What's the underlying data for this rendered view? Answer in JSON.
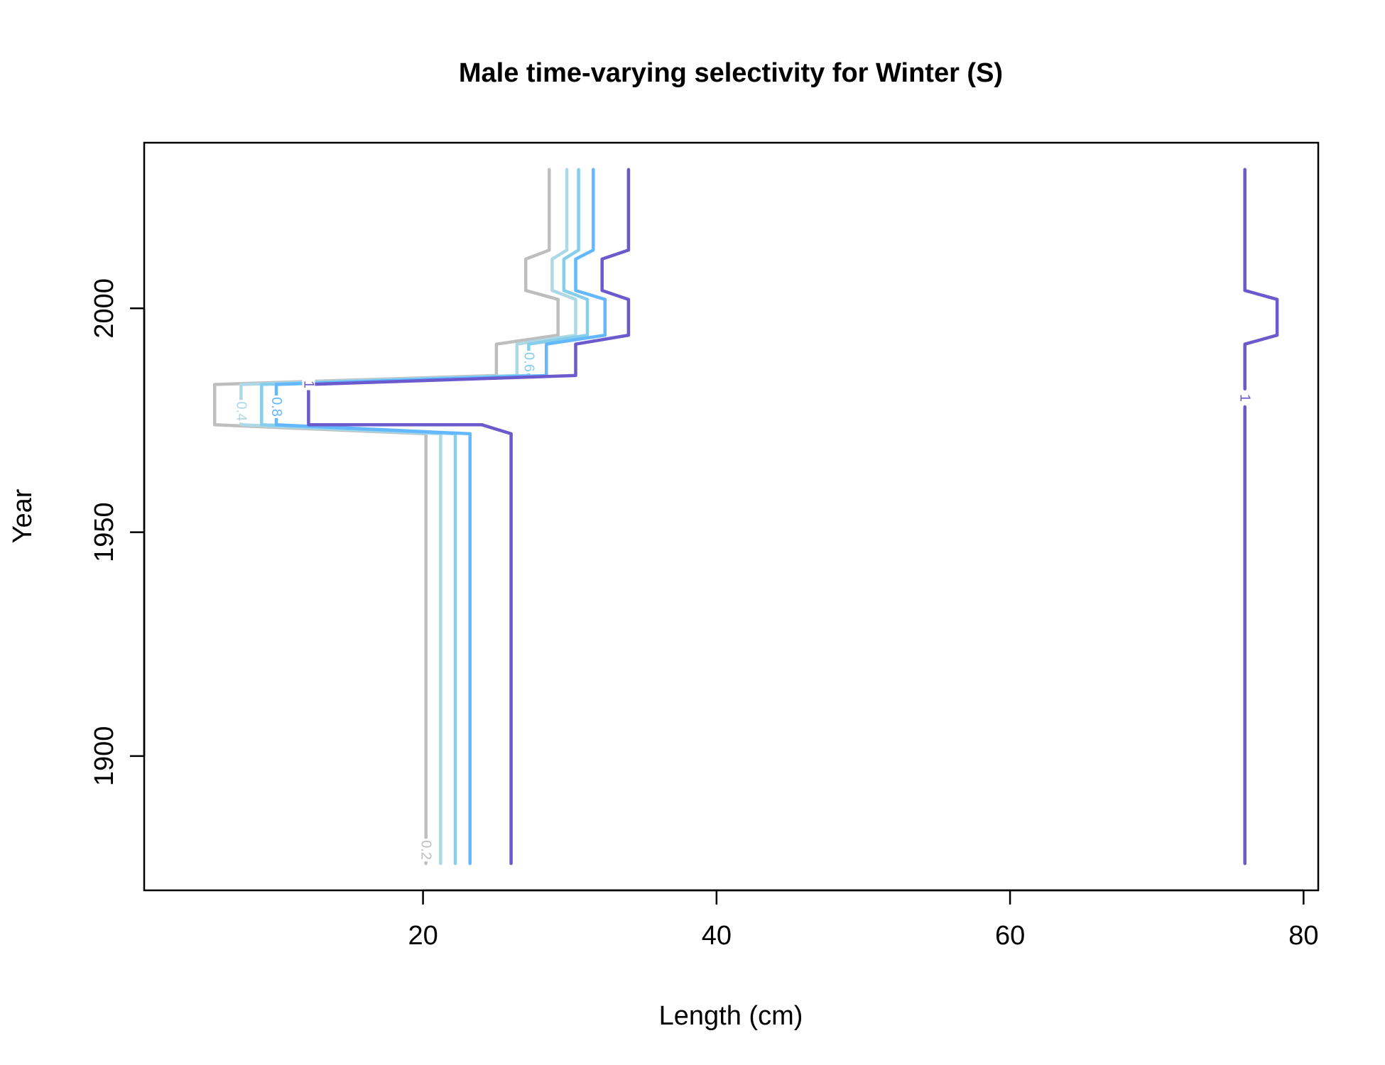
{
  "chart_data": {
    "type": "contour",
    "title": "Male time-varying selectivity for Winter (S)",
    "xlabel": "Length (cm)",
    "ylabel": "Year",
    "xlim": [
      1,
      81
    ],
    "ylim": [
      1870,
      2037
    ],
    "xticks": [
      20,
      40,
      60,
      80
    ],
    "yticks": [
      1900,
      1950,
      2000
    ],
    "grid": false,
    "legend": "none",
    "series": [
      {
        "level": 0.2,
        "label": "0.2",
        "color": "#BEBEBE",
        "paths": [
          [
            [
              20.2,
              1876
            ],
            [
              20.2,
              1972
            ],
            [
              5.8,
              1974
            ],
            [
              5.8,
              1983
            ],
            [
              25.0,
              1985
            ],
            [
              25.0,
              1992
            ],
            [
              29.2,
              1994
            ],
            [
              29.2,
              2002
            ],
            [
              27.0,
              2004
            ],
            [
              27.0,
              2011
            ],
            [
              28.6,
              2013
            ],
            [
              28.6,
              2031
            ]
          ]
        ]
      },
      {
        "level": 0.4,
        "label": "0.4",
        "color": "#ADD8E6",
        "paths": [
          [
            [
              21.2,
              1876
            ],
            [
              21.2,
              1972
            ],
            [
              7.6,
              1974
            ],
            [
              7.6,
              1983
            ],
            [
              26.4,
              1985
            ],
            [
              26.4,
              1992
            ],
            [
              30.4,
              1994
            ],
            [
              30.4,
              2002
            ],
            [
              28.8,
              2004
            ],
            [
              28.8,
              2011
            ],
            [
              29.8,
              2013
            ],
            [
              29.8,
              2031
            ]
          ]
        ]
      },
      {
        "level": 0.6,
        "label": "0.6",
        "color": "#87CEEB",
        "paths": [
          [
            [
              22.2,
              1876
            ],
            [
              22.2,
              1972
            ],
            [
              9.0,
              1974
            ],
            [
              9.0,
              1983
            ],
            [
              27.2,
              1985
            ],
            [
              27.2,
              1992
            ],
            [
              31.2,
              1994
            ],
            [
              31.2,
              2002
            ],
            [
              29.6,
              2004
            ],
            [
              29.6,
              2011
            ],
            [
              30.6,
              2013
            ],
            [
              30.6,
              2031
            ]
          ]
        ]
      },
      {
        "level": 0.8,
        "label": "0.8",
        "color": "#63B8FF",
        "paths": [
          [
            [
              23.2,
              1876
            ],
            [
              23.2,
              1972
            ],
            [
              10.0,
              1974
            ],
            [
              10.0,
              1983
            ],
            [
              28.4,
              1985
            ],
            [
              28.4,
              1992
            ],
            [
              32.4,
              1994
            ],
            [
              32.4,
              2002
            ],
            [
              30.4,
              2004
            ],
            [
              30.4,
              2011
            ],
            [
              31.6,
              2013
            ],
            [
              31.6,
              2031
            ]
          ]
        ]
      },
      {
        "level": 1,
        "label": "1",
        "color": "#6A5ACD",
        "paths": [
          [
            [
              26.0,
              1876
            ],
            [
              26.0,
              1972
            ],
            [
              24.0,
              1974
            ],
            [
              12.2,
              1974
            ],
            [
              12.2,
              1983
            ],
            [
              30.4,
              1985
            ],
            [
              30.4,
              1992
            ],
            [
              34.0,
              1994
            ],
            [
              34.0,
              2002
            ],
            [
              32.2,
              2004
            ],
            [
              32.2,
              2011
            ],
            [
              34.0,
              2013
            ],
            [
              34.0,
              2031
            ]
          ],
          [
            [
              76.0,
              1876
            ],
            [
              76.0,
              1978
            ]
          ],
          [
            [
              76.0,
              1982
            ],
            [
              76.0,
              1992
            ],
            [
              78.2,
              1994
            ],
            [
              78.2,
              2002
            ],
            [
              76.0,
              2004
            ],
            [
              76.0,
              2031
            ]
          ]
        ]
      }
    ],
    "contour_labels": [
      {
        "text": "0.2",
        "x": 20.2,
        "y": 1879,
        "color": "#BEBEBE"
      },
      {
        "text": "0.4",
        "x": 7.6,
        "y": 1977,
        "color": "#ADD8E6"
      },
      {
        "text": "0.6",
        "x": 27.2,
        "y": 1988,
        "color": "#87CEEB"
      },
      {
        "text": "0.8",
        "x": 10.0,
        "y": 1978,
        "color": "#63B8FF"
      },
      {
        "text": "1",
        "x": 12.2,
        "y": 1983,
        "color": "#6A5ACD"
      },
      {
        "text": "1",
        "x": 76.0,
        "y": 1980,
        "color": "#6A5ACD"
      }
    ]
  }
}
